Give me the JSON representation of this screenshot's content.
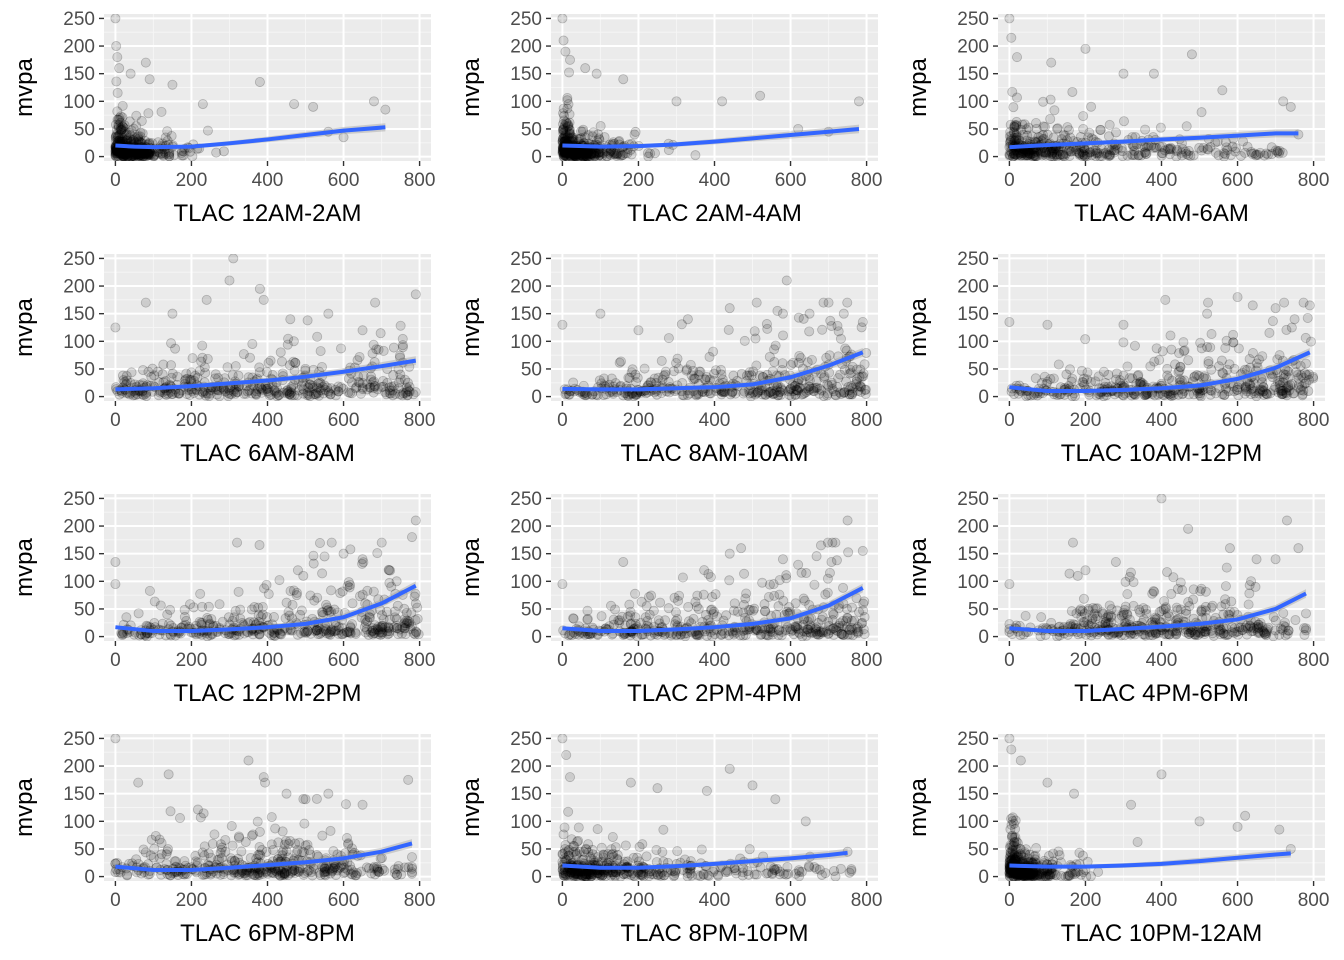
{
  "colors": {
    "panel_bg": "#ebebeb",
    "grid_major": "#ffffff",
    "grid_minor": "#f5f5f5",
    "points": "#000000",
    "smooth": "#3366ff",
    "ribbon": "#999999",
    "tick_text": "#4d4d4d",
    "tick_mark": "#333333"
  },
  "chart_data": [
    {
      "type": "scatter",
      "title": "",
      "xlabel": "TLAC 12AM-2AM",
      "ylabel": "mvpa",
      "xlim": [
        -30,
        830
      ],
      "ylim": [
        -8,
        258
      ],
      "xticks": [
        0,
        200,
        400,
        600,
        800
      ],
      "yticks": [
        0,
        50,
        100,
        150,
        200,
        250
      ],
      "cloud": {
        "kind": "left",
        "xmax": 720
      },
      "outliers": [
        [
          0,
          250
        ],
        [
          2,
          200
        ],
        [
          5,
          180
        ],
        [
          10,
          160
        ],
        [
          40,
          150
        ],
        [
          80,
          170
        ],
        [
          90,
          140
        ],
        [
          150,
          130
        ],
        [
          230,
          95
        ],
        [
          380,
          135
        ],
        [
          470,
          95
        ],
        [
          520,
          90
        ],
        [
          560,
          45
        ],
        [
          600,
          35
        ],
        [
          680,
          100
        ],
        [
          710,
          85
        ]
      ],
      "smooth": [
        [
          0,
          20
        ],
        [
          50,
          18
        ],
        [
          100,
          17
        ],
        [
          200,
          18
        ],
        [
          300,
          24
        ],
        [
          400,
          31
        ],
        [
          500,
          39
        ],
        [
          600,
          47
        ],
        [
          710,
          53
        ]
      ]
    },
    {
      "type": "scatter",
      "title": "",
      "xlabel": "TLAC 2AM-4AM",
      "ylabel": "mvpa",
      "xlim": [
        -30,
        830
      ],
      "ylim": [
        -8,
        258
      ],
      "xticks": [
        0,
        200,
        400,
        600,
        800
      ],
      "yticks": [
        0,
        50,
        100,
        150,
        200,
        250
      ],
      "cloud": {
        "kind": "left",
        "xmax": 780
      },
      "outliers": [
        [
          0,
          250
        ],
        [
          3,
          210
        ],
        [
          8,
          190
        ],
        [
          20,
          175
        ],
        [
          60,
          160
        ],
        [
          90,
          150
        ],
        [
          160,
          140
        ],
        [
          300,
          100
        ],
        [
          420,
          100
        ],
        [
          520,
          110
        ],
        [
          620,
          50
        ],
        [
          700,
          45
        ],
        [
          780,
          100
        ]
      ],
      "smooth": [
        [
          0,
          20
        ],
        [
          100,
          18
        ],
        [
          200,
          19
        ],
        [
          300,
          22
        ],
        [
          400,
          27
        ],
        [
          500,
          33
        ],
        [
          600,
          39
        ],
        [
          700,
          45
        ],
        [
          780,
          50
        ]
      ]
    },
    {
      "type": "scatter",
      "title": "",
      "xlabel": "TLAC 4AM-6AM",
      "ylabel": "mvpa",
      "xlim": [
        -30,
        830
      ],
      "ylim": [
        -8,
        258
      ],
      "xticks": [
        0,
        200,
        400,
        600,
        800
      ],
      "yticks": [
        0,
        50,
        100,
        150,
        200,
        250
      ],
      "cloud": {
        "kind": "left-wide",
        "xmax": 760
      },
      "outliers": [
        [
          0,
          250
        ],
        [
          5,
          215
        ],
        [
          20,
          180
        ],
        [
          110,
          170
        ],
        [
          200,
          195
        ],
        [
          300,
          150
        ],
        [
          380,
          150
        ],
        [
          480,
          185
        ],
        [
          560,
          120
        ],
        [
          720,
          100
        ],
        [
          740,
          90
        ],
        [
          760,
          40
        ]
      ],
      "smooth": [
        [
          0,
          17
        ],
        [
          100,
          21
        ],
        [
          200,
          24
        ],
        [
          300,
          27
        ],
        [
          400,
          31
        ],
        [
          500,
          34
        ],
        [
          600,
          38
        ],
        [
          700,
          42
        ],
        [
          760,
          42
        ]
      ]
    },
    {
      "type": "scatter",
      "title": "",
      "xlabel": "TLAC 6AM-8AM",
      "ylabel": "mvpa",
      "xlim": [
        -30,
        830
      ],
      "ylim": [
        -8,
        258
      ],
      "xticks": [
        0,
        200,
        400,
        600,
        800
      ],
      "yticks": [
        0,
        50,
        100,
        150,
        200,
        250
      ],
      "cloud": {
        "kind": "uniform",
        "xmax": 790
      },
      "outliers": [
        [
          0,
          125
        ],
        [
          80,
          170
        ],
        [
          150,
          150
        ],
        [
          240,
          175
        ],
        [
          310,
          250
        ],
        [
          300,
          210
        ],
        [
          380,
          195
        ],
        [
          390,
          175
        ],
        [
          460,
          140
        ],
        [
          560,
          150
        ],
        [
          650,
          120
        ],
        [
          790,
          185
        ]
      ],
      "smooth": [
        [
          0,
          13
        ],
        [
          100,
          15
        ],
        [
          200,
          19
        ],
        [
          300,
          24
        ],
        [
          400,
          29
        ],
        [
          500,
          36
        ],
        [
          600,
          45
        ],
        [
          700,
          55
        ],
        [
          790,
          65
        ]
      ]
    },
    {
      "type": "scatter",
      "title": "",
      "xlabel": "TLAC 8AM-10AM",
      "ylabel": "mvpa",
      "xlim": [
        -30,
        830
      ],
      "ylim": [
        -8,
        258
      ],
      "xticks": [
        0,
        200,
        400,
        600,
        800
      ],
      "yticks": [
        0,
        50,
        100,
        150,
        200,
        250
      ],
      "cloud": {
        "kind": "rising",
        "xmax": 800
      },
      "outliers": [
        [
          0,
          130
        ],
        [
          100,
          150
        ],
        [
          200,
          120
        ],
        [
          330,
          140
        ],
        [
          440,
          160
        ],
        [
          580,
          150
        ],
        [
          590,
          210
        ],
        [
          650,
          150
        ],
        [
          700,
          170
        ],
        [
          740,
          150
        ],
        [
          790,
          135
        ]
      ],
      "smooth": [
        [
          0,
          14
        ],
        [
          100,
          13
        ],
        [
          200,
          13
        ],
        [
          300,
          15
        ],
        [
          400,
          17
        ],
        [
          500,
          22
        ],
        [
          600,
          35
        ],
        [
          700,
          56
        ],
        [
          790,
          80
        ]
      ]
    },
    {
      "type": "scatter",
      "title": "",
      "xlabel": "TLAC 10AM-12PM",
      "ylabel": "mvpa",
      "xlim": [
        -30,
        830
      ],
      "ylim": [
        -8,
        258
      ],
      "xticks": [
        0,
        200,
        400,
        600,
        800
      ],
      "yticks": [
        0,
        50,
        100,
        150,
        200,
        250
      ],
      "cloud": {
        "kind": "rising",
        "xmax": 800
      },
      "outliers": [
        [
          0,
          135
        ],
        [
          100,
          130
        ],
        [
          300,
          130
        ],
        [
          410,
          175
        ],
        [
          520,
          150
        ],
        [
          600,
          180
        ],
        [
          640,
          165
        ],
        [
          700,
          160
        ],
        [
          750,
          140
        ],
        [
          790,
          165
        ]
      ],
      "smooth": [
        [
          0,
          17
        ],
        [
          100,
          10
        ],
        [
          200,
          10
        ],
        [
          300,
          12
        ],
        [
          400,
          15
        ],
        [
          500,
          20
        ],
        [
          600,
          32
        ],
        [
          700,
          52
        ],
        [
          790,
          80
        ]
      ]
    },
    {
      "type": "scatter",
      "title": "",
      "xlabel": "TLAC 12PM-2PM",
      "ylabel": "mvpa",
      "xlim": [
        -30,
        830
      ],
      "ylim": [
        -8,
        258
      ],
      "xticks": [
        0,
        200,
        400,
        600,
        800
      ],
      "yticks": [
        0,
        50,
        100,
        150,
        200,
        250
      ],
      "cloud": {
        "kind": "rising",
        "xmax": 800
      },
      "outliers": [
        [
          0,
          135
        ],
        [
          0,
          95
        ],
        [
          320,
          170
        ],
        [
          480,
          120
        ],
        [
          550,
          145
        ],
        [
          600,
          150
        ],
        [
          650,
          140
        ],
        [
          720,
          120
        ],
        [
          780,
          180
        ],
        [
          790,
          210
        ]
      ],
      "smooth": [
        [
          0,
          17
        ],
        [
          100,
          10
        ],
        [
          200,
          10
        ],
        [
          300,
          13
        ],
        [
          400,
          17
        ],
        [
          500,
          23
        ],
        [
          600,
          35
        ],
        [
          700,
          60
        ],
        [
          790,
          92
        ]
      ]
    },
    {
      "type": "scatter",
      "title": "",
      "xlabel": "TLAC 2PM-4PM",
      "ylabel": "mvpa",
      "xlim": [
        -30,
        830
      ],
      "ylim": [
        -8,
        258
      ],
      "xticks": [
        0,
        200,
        400,
        600,
        800
      ],
      "yticks": [
        0,
        50,
        100,
        150,
        200,
        250
      ],
      "cloud": {
        "kind": "rising",
        "xmax": 800
      },
      "outliers": [
        [
          0,
          95
        ],
        [
          160,
          135
        ],
        [
          440,
          150
        ],
        [
          470,
          160
        ],
        [
          580,
          140
        ],
        [
          620,
          130
        ],
        [
          680,
          165
        ],
        [
          710,
          170
        ],
        [
          750,
          210
        ],
        [
          790,
          155
        ]
      ],
      "smooth": [
        [
          0,
          15
        ],
        [
          100,
          10
        ],
        [
          200,
          10
        ],
        [
          300,
          13
        ],
        [
          400,
          17
        ],
        [
          500,
          23
        ],
        [
          600,
          33
        ],
        [
          700,
          56
        ],
        [
          790,
          88
        ]
      ]
    },
    {
      "type": "scatter",
      "title": "",
      "xlabel": "TLAC 4PM-6PM",
      "ylabel": "mvpa",
      "xlim": [
        -30,
        830
      ],
      "ylim": [
        -8,
        258
      ],
      "xticks": [
        0,
        200,
        400,
        600,
        800
      ],
      "yticks": [
        0,
        50,
        100,
        150,
        200,
        250
      ],
      "cloud": {
        "kind": "hump",
        "xmax": 780
      },
      "outliers": [
        [
          0,
          95
        ],
        [
          200,
          120
        ],
        [
          280,
          135
        ],
        [
          400,
          250
        ],
        [
          470,
          195
        ],
        [
          580,
          160
        ],
        [
          650,
          140
        ],
        [
          700,
          140
        ],
        [
          730,
          210
        ],
        [
          760,
          160
        ]
      ],
      "smooth": [
        [
          0,
          15
        ],
        [
          100,
          10
        ],
        [
          200,
          10
        ],
        [
          300,
          14
        ],
        [
          400,
          18
        ],
        [
          500,
          23
        ],
        [
          600,
          31
        ],
        [
          700,
          50
        ],
        [
          780,
          78
        ]
      ]
    },
    {
      "type": "scatter",
      "title": "",
      "xlabel": "TLAC 6PM-8PM",
      "ylabel": "mvpa",
      "xlim": [
        -30,
        830
      ],
      "ylim": [
        -8,
        258
      ],
      "xticks": [
        0,
        200,
        400,
        600,
        800
      ],
      "yticks": [
        0,
        50,
        100,
        150,
        200,
        250
      ],
      "cloud": {
        "kind": "hump",
        "xmax": 780
      },
      "outliers": [
        [
          0,
          250
        ],
        [
          60,
          170
        ],
        [
          140,
          185
        ],
        [
          350,
          210
        ],
        [
          390,
          180
        ],
        [
          450,
          150
        ],
        [
          500,
          140
        ],
        [
          560,
          150
        ],
        [
          650,
          130
        ],
        [
          770,
          175
        ]
      ],
      "smooth": [
        [
          0,
          18
        ],
        [
          100,
          12
        ],
        [
          200,
          12
        ],
        [
          300,
          16
        ],
        [
          400,
          21
        ],
        [
          500,
          26
        ],
        [
          600,
          33
        ],
        [
          700,
          45
        ],
        [
          780,
          60
        ]
      ]
    },
    {
      "type": "scatter",
      "title": "",
      "xlabel": "TLAC 8PM-10PM",
      "ylabel": "mvpa",
      "xlim": [
        -30,
        830
      ],
      "ylim": [
        -8,
        258
      ],
      "xticks": [
        0,
        200,
        400,
        600,
        800
      ],
      "yticks": [
        0,
        50,
        100,
        150,
        200,
        250
      ],
      "cloud": {
        "kind": "left-wide",
        "xmax": 760
      },
      "outliers": [
        [
          0,
          250
        ],
        [
          10,
          220
        ],
        [
          20,
          180
        ],
        [
          180,
          170
        ],
        [
          250,
          160
        ],
        [
          380,
          155
        ],
        [
          440,
          195
        ],
        [
          500,
          165
        ],
        [
          560,
          140
        ],
        [
          640,
          100
        ],
        [
          750,
          45
        ]
      ],
      "smooth": [
        [
          0,
          20
        ],
        [
          100,
          16
        ],
        [
          200,
          16
        ],
        [
          300,
          19
        ],
        [
          400,
          23
        ],
        [
          500,
          28
        ],
        [
          600,
          33
        ],
        [
          700,
          39
        ],
        [
          750,
          43
        ]
      ]
    },
    {
      "type": "scatter",
      "title": "",
      "xlabel": "TLAC 10PM-12AM",
      "ylabel": "mvpa",
      "xlim": [
        -30,
        830
      ],
      "ylim": [
        -8,
        258
      ],
      "xticks": [
        0,
        200,
        400,
        600,
        800
      ],
      "yticks": [
        0,
        50,
        100,
        150,
        200,
        250
      ],
      "cloud": {
        "kind": "left",
        "xmax": 740
      },
      "outliers": [
        [
          0,
          250
        ],
        [
          5,
          230
        ],
        [
          30,
          210
        ],
        [
          100,
          170
        ],
        [
          170,
          150
        ],
        [
          320,
          130
        ],
        [
          400,
          185
        ],
        [
          500,
          100
        ],
        [
          600,
          90
        ],
        [
          620,
          110
        ],
        [
          710,
          85
        ],
        [
          740,
          50
        ]
      ],
      "smooth": [
        [
          0,
          20
        ],
        [
          100,
          18
        ],
        [
          200,
          18
        ],
        [
          300,
          20
        ],
        [
          400,
          23
        ],
        [
          500,
          28
        ],
        [
          600,
          34
        ],
        [
          700,
          40
        ],
        [
          740,
          42
        ]
      ]
    }
  ]
}
